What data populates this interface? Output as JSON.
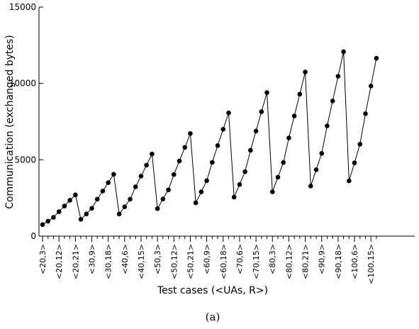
{
  "chart_data": {
    "type": "line",
    "x_label": "Test cases (<UAs, R>)",
    "y_label": "Communication (exchanged bytes)",
    "caption": "(a)",
    "categories": [
      "<20,3>",
      null,
      null,
      "<20,12>",
      null,
      null,
      "<20,21>",
      null,
      null,
      "<30,9>",
      null,
      null,
      "<30,18>",
      null,
      null,
      "<40,6>",
      null,
      null,
      "<40,15>",
      null,
      null,
      "<50,3>",
      null,
      null,
      "<50,12>",
      null,
      null,
      "<50,21>",
      null,
      null,
      "<60,9>",
      null,
      null,
      "<60,18>",
      null,
      null,
      "<70,6>",
      null,
      null,
      "<70,15>",
      null,
      null,
      "<80,3>",
      null,
      null,
      "<80,12>",
      null,
      null,
      "<80,21>",
      null,
      null,
      "<90,9>",
      null,
      null,
      "<90,18>",
      null,
      null,
      "<100,6>",
      null,
      null,
      "<100,15>",
      null
    ],
    "series": [
      {
        "color": "#000000",
        "values": [
          750,
          980,
          1230,
          1600,
          1970,
          2350,
          2700,
          1100,
          1450,
          1820,
          2420,
          2950,
          3500,
          4050,
          1450,
          1920,
          2420,
          3230,
          3930,
          4650,
          5380,
          1800,
          2430,
          3030,
          4030,
          4920,
          5810,
          6720,
          2180,
          2900,
          3630,
          4830,
          5930,
          7000,
          8070,
          2550,
          3380,
          4220,
          5620,
          6880,
          8150,
          9400,
          2900,
          3860,
          4820,
          6430,
          7870,
          9300,
          10750,
          3280,
          4350,
          5420,
          7220,
          8850,
          10470,
          12080,
          3620,
          4800,
          6020,
          8020,
          9830,
          11650
        ]
      }
    ],
    "ylim": [
      0,
      15000
    ],
    "yticks": [
      0,
      5000,
      10000,
      15000
    ],
    "grid": false
  }
}
